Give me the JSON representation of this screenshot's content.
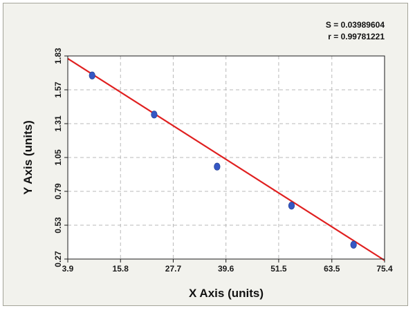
{
  "chart_data": {
    "type": "scatter",
    "title": "",
    "xlabel": "X Axis (units)",
    "ylabel": "Y Axis (units)",
    "xlim": [
      3.9,
      75.4
    ],
    "ylim": [
      0.27,
      1.83
    ],
    "x_ticks": [
      "3.9",
      "15.8",
      "27.7",
      "39.6",
      "51.5",
      "63.5",
      "75.4"
    ],
    "y_ticks": [
      "0.27",
      "0.53",
      "0.79",
      "1.05",
      "1.31",
      "1.57",
      "1.83"
    ],
    "grid": true,
    "series": [
      {
        "points": [
          {
            "x": 9.4,
            "y": 1.68
          },
          {
            "x": 23.4,
            "y": 1.38
          },
          {
            "x": 37.6,
            "y": 0.98
          },
          {
            "x": 54.4,
            "y": 0.68
          },
          {
            "x": 68.4,
            "y": 0.38
          }
        ],
        "color": "#3557c4"
      }
    ],
    "fit_line": {
      "x": [
        3.9,
        75.4
      ],
      "y": [
        1.81,
        0.26
      ],
      "color": "#e02020"
    },
    "annotations": {
      "s": "S = 0.03989604",
      "r": "r = 0.99781221"
    }
  }
}
